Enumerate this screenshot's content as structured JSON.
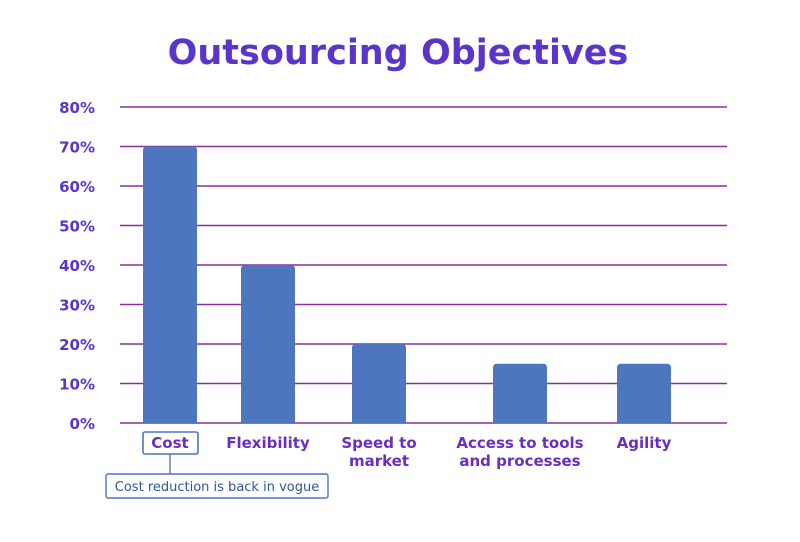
{
  "chart_data": {
    "type": "bar",
    "title": "Outsourcing Objectives",
    "categories": [
      [
        "Cost"
      ],
      [
        "Flexibility"
      ],
      [
        "Speed to",
        "market"
      ],
      [
        "Access to tools",
        "and processes"
      ],
      [
        "Agility"
      ]
    ],
    "values": [
      70,
      40,
      20,
      15,
      15
    ],
    "yticks": [
      "0%",
      "10%",
      "20%",
      "30%",
      "40%",
      "50%",
      "60%",
      "70%",
      "80%"
    ],
    "ylim": [
      0,
      80
    ],
    "grid": true,
    "annotation": {
      "category": "Cost",
      "text": "Cost reduction is back in vogue"
    }
  },
  "colors": {
    "title": "#5b34c9",
    "axis_text": "#5b34c9",
    "grid": "#8b2f9b",
    "bar": "#4e76bf",
    "category_text": "#6a2fc0",
    "callout_border": "#4e76bf",
    "callout_text": "#2f5597"
  }
}
